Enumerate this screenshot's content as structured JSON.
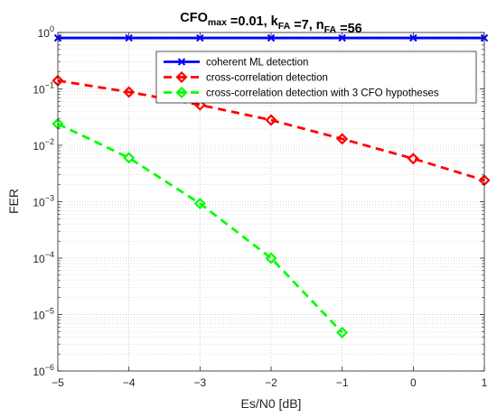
{
  "chart_data": {
    "type": "line",
    "title": {
      "parts": [
        {
          "text": "CFO",
          "sub": "max"
        },
        {
          "text": " =0.01, k",
          "sub": "FA"
        },
        {
          "text": " =7, n",
          "sub": "FA"
        },
        {
          "text": " =56",
          "sub": ""
        }
      ]
    },
    "xlabel": "Es/N0 [dB]",
    "ylabel": "FER",
    "xlim": [
      -5,
      1
    ],
    "ylim": [
      1e-06,
      1
    ],
    "yscale": "log",
    "grid": true,
    "minor_grid": true,
    "legend_position": "top-right",
    "x_ticks": [
      -5,
      -4,
      -3,
      -2,
      -1,
      0,
      1
    ],
    "x_tick_labels": [
      "−5",
      "−4",
      "−3",
      "−2",
      "−1",
      "0",
      "1"
    ],
    "y_ticks": [
      {
        "exp": 0,
        "base": "10",
        "sup": "0"
      },
      {
        "exp": -1,
        "base": "10",
        "sup": "−1"
      },
      {
        "exp": -2,
        "base": "10",
        "sup": "−2"
      },
      {
        "exp": -3,
        "base": "10",
        "sup": "−3"
      },
      {
        "exp": -4,
        "base": "10",
        "sup": "−4"
      },
      {
        "exp": -5,
        "base": "10",
        "sup": "−5"
      },
      {
        "exp": -6,
        "base": "10",
        "sup": "−6"
      }
    ],
    "series": [
      {
        "name": "coherent ML detection",
        "color": "#0000ff",
        "line_style": "solid",
        "marker": "x",
        "x": [
          -5,
          -4,
          -3,
          -2,
          -1,
          0,
          1
        ],
        "y": [
          0.8,
          0.8,
          0.8,
          0.8,
          0.8,
          0.8,
          0.8
        ]
      },
      {
        "name": "cross-correlation detection",
        "color": "#ff0000",
        "line_style": "dashed",
        "marker": "diamond",
        "x": [
          -5,
          -4,
          -3,
          -2,
          -1,
          0,
          1
        ],
        "y": [
          0.14,
          0.088,
          0.052,
          0.028,
          0.013,
          0.0058,
          0.0024
        ]
      },
      {
        "name": "cross-correlation detection with 3 CFO hypotheses",
        "color": "#00ff00",
        "line_style": "dashed",
        "marker": "diamond",
        "x": [
          -5,
          -4,
          -3,
          -2,
          -1
        ],
        "y": [
          0.024,
          0.006,
          0.00093,
          0.0001,
          4.8e-06
        ]
      }
    ]
  }
}
